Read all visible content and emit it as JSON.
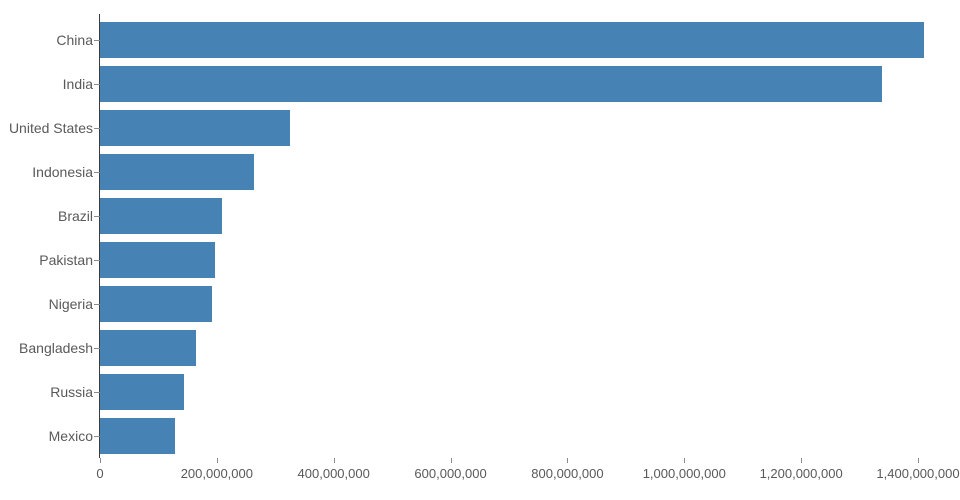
{
  "chart_data": {
    "type": "bar",
    "orientation": "horizontal",
    "title": "",
    "xlabel": "",
    "ylabel": "",
    "categories": [
      "China",
      "India",
      "United States",
      "Indonesia",
      "Brazil",
      "Pakistan",
      "Nigeria",
      "Bangladesh",
      "Russia",
      "Mexico"
    ],
    "values": [
      1409517397,
      1339180127,
      324459463,
      263991379,
      209288278,
      197015955,
      190886311,
      164669751,
      143989754,
      129163276
    ],
    "xlim": [
      0,
      1400000000
    ],
    "x_ticks": [
      0,
      200000000,
      400000000,
      600000000,
      800000000,
      1000000000,
      1200000000,
      1400000000
    ],
    "x_tick_labels": [
      "0",
      "200,000,000",
      "400,000,000",
      "600,000,000",
      "800,000,000",
      "1,000,000,000",
      "1,200,000,000",
      "1,400,000,000"
    ],
    "bar_color": "#4682b4",
    "grid": false,
    "legend": false
  }
}
